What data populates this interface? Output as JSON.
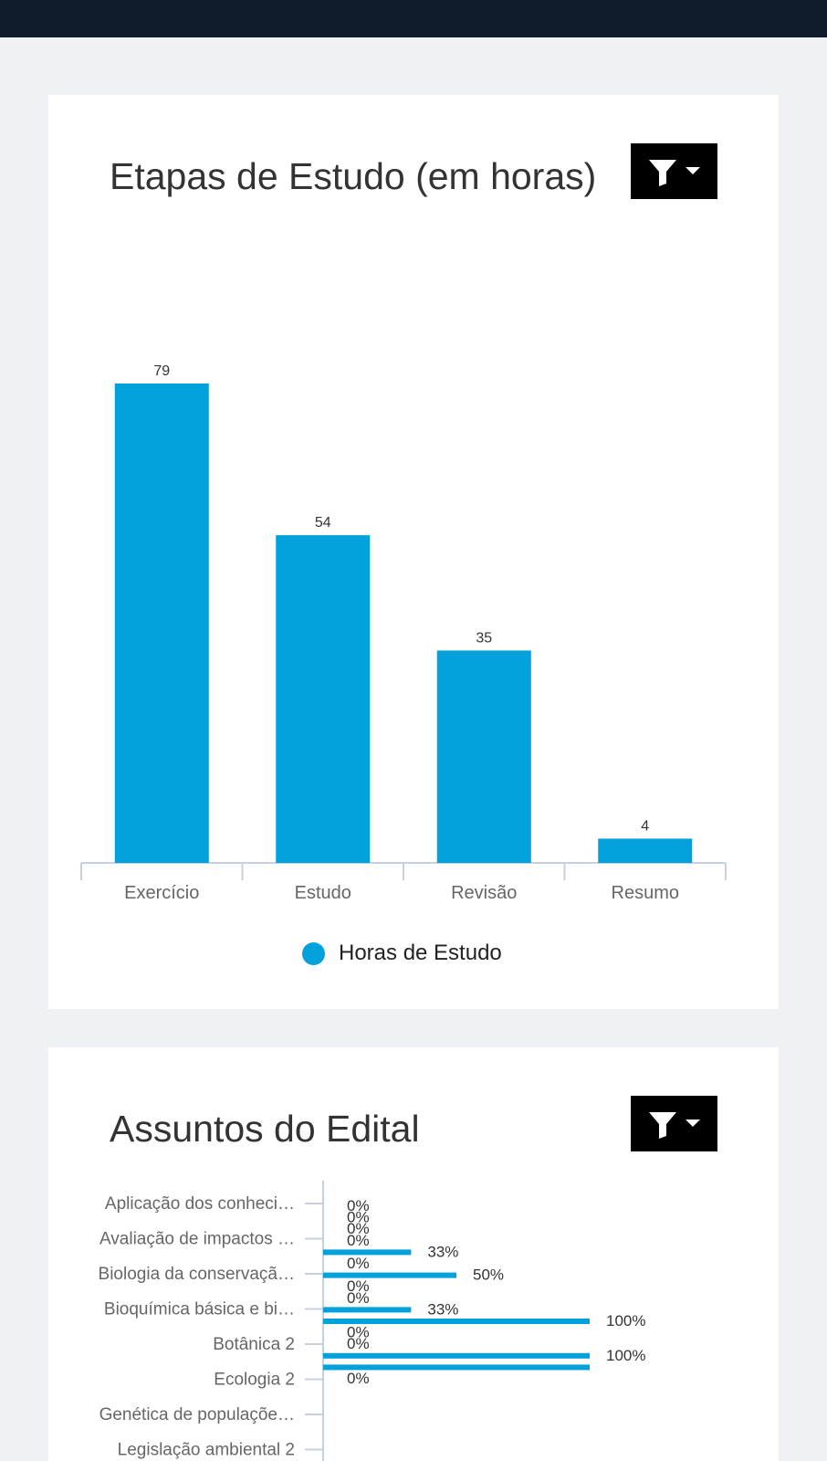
{
  "colors": {
    "bar": "#02a1db",
    "topbar": "#0f1a2a",
    "axis": "#c8d0e0"
  },
  "filter_icon": "filter-icon",
  "dropdown_icon": "caret-down-icon",
  "card1": {
    "title": "Etapas de Estudo (em horas)",
    "legend_label": "Horas de Estudo"
  },
  "card2": {
    "title": "Assuntos do Edital"
  },
  "chart_data": [
    {
      "type": "bar",
      "title": "Etapas de Estudo (em horas)",
      "categories": [
        "Exercício",
        "Estudo",
        "Revisão",
        "Resumo"
      ],
      "series": [
        {
          "name": "Horas de Estudo",
          "values": [
            79,
            54,
            35,
            4
          ]
        }
      ],
      "ylim": [
        0,
        79
      ],
      "legend": "bottom-center"
    },
    {
      "type": "bar",
      "orientation": "horizontal",
      "title": "Assuntos do Edital",
      "categories": [
        "Aplicação dos conheci…",
        "Avaliação de impactos …",
        "Biologia da conservaçã…",
        "Bioquímica básica e bi…",
        "Botânica 2",
        "Ecologia 2",
        "Genética de populaçõe…",
        "Legislação ambiental 2"
      ],
      "bars": [
        {
          "value": 0,
          "label": "0%"
        },
        {
          "value": 0,
          "label": "0%"
        },
        {
          "value": 0,
          "label": "0%"
        },
        {
          "value": 0,
          "label": "0%"
        },
        {
          "value": 33,
          "label": "33%"
        },
        {
          "value": 0,
          "label": "0%"
        },
        {
          "value": 50,
          "label": "50%"
        },
        {
          "value": 0,
          "label": "0%"
        },
        {
          "value": 0,
          "label": "0%"
        },
        {
          "value": 33,
          "label": "33%"
        },
        {
          "value": 100,
          "label": "100%"
        },
        {
          "value": 0,
          "label": "0%"
        },
        {
          "value": 0,
          "label": "0%"
        },
        {
          "value": 100,
          "label": "100%"
        },
        {
          "value": 100,
          "label": ""
        },
        {
          "value": 0,
          "label": "0%"
        }
      ],
      "xlim": [
        0,
        100
      ]
    }
  ]
}
